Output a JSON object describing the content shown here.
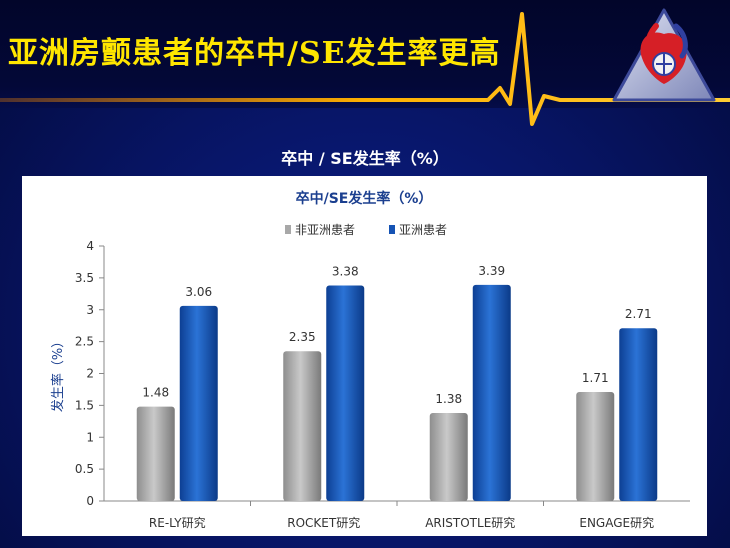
{
  "slide": {
    "title": "亚洲房颤患者的卒中/SE发生率更高",
    "chart_heading": "卒中 / SE发生率（%）"
  },
  "colors": {
    "title": "#ffe600",
    "series_non_asian": "#a8a8a8",
    "series_asian": "#1553b4"
  },
  "icons": [
    "heartbeat-line",
    "hospital-logo-icon"
  ],
  "chart_data": {
    "type": "bar",
    "title": "卒中/SE发生率（%）",
    "ylabel": "发生率（%）",
    "xlabel": "",
    "categories": [
      "RE-LY研究",
      "ROCKET研究",
      "ARISTOTLE研究",
      "ENGAGE研究"
    ],
    "series": [
      {
        "name": "非亚洲患者",
        "values": [
          1.48,
          2.35,
          1.38,
          1.71
        ]
      },
      {
        "name": "亚洲患者",
        "values": [
          3.06,
          3.38,
          3.39,
          2.71
        ]
      }
    ],
    "ylim": [
      0,
      4
    ],
    "yticks": [
      "0",
      "0.5",
      "1",
      "1.5",
      "2",
      "2.5",
      "3",
      "3.5",
      "4"
    ],
    "grid": false,
    "legend": "top-center",
    "data_labels": true
  }
}
